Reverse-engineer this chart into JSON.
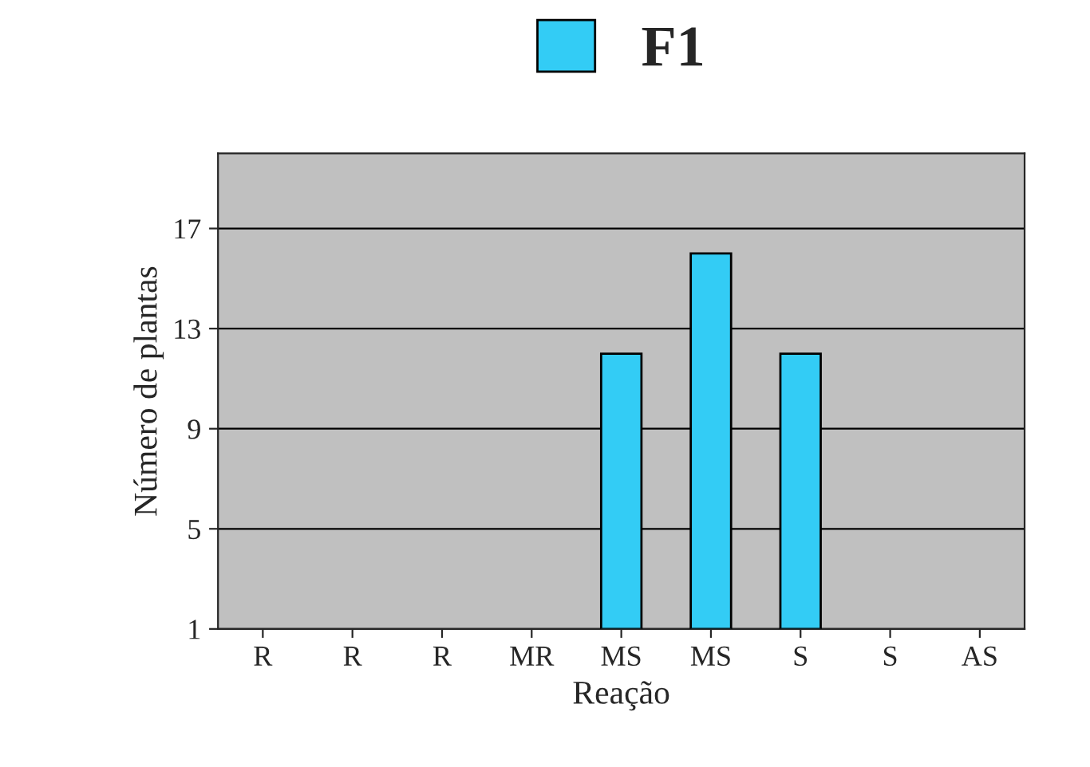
{
  "chart_data": {
    "type": "bar",
    "xlabel": "Reação",
    "ylabel": "Número de plantas",
    "categories": [
      "R",
      "R",
      "R",
      "MR",
      "MS",
      "MS",
      "S",
      "S",
      "AS"
    ],
    "series": [
      {
        "name": "F1",
        "color": "#33ccf5",
        "values": [
          null,
          null,
          null,
          null,
          12,
          16,
          12,
          null,
          null
        ]
      }
    ],
    "ylim": [
      1,
      20
    ],
    "yticks": [
      1,
      5,
      9,
      13,
      17
    ],
    "grid": "y",
    "legend": "top"
  }
}
